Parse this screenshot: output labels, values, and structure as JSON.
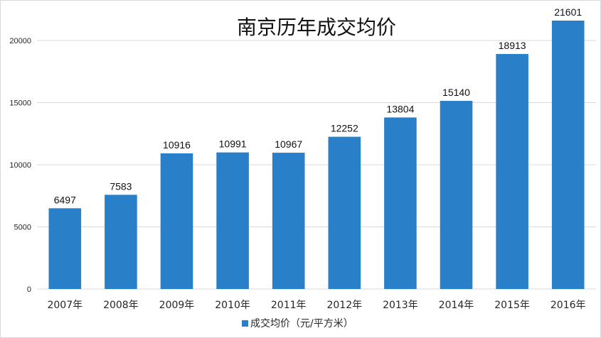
{
  "chart_data": {
    "type": "bar",
    "title": "南京历年成交均价",
    "categories": [
      "2007年",
      "2008年",
      "2009年",
      "2010年",
      "2011年",
      "2012年",
      "2013年",
      "2014年",
      "2015年",
      "2016年"
    ],
    "series": [
      {
        "name": "成交均价（元/平方米）",
        "values": [
          6497,
          7583,
          10916,
          10991,
          10967,
          12252,
          13804,
          15140,
          18913,
          21601
        ]
      }
    ],
    "yticks": [
      0,
      5000,
      10000,
      15000,
      20000
    ],
    "ylim": [
      0,
      22000
    ],
    "grid": true,
    "legend": "bottom",
    "bar_color": "#2a7fc9",
    "data_labels": true
  }
}
